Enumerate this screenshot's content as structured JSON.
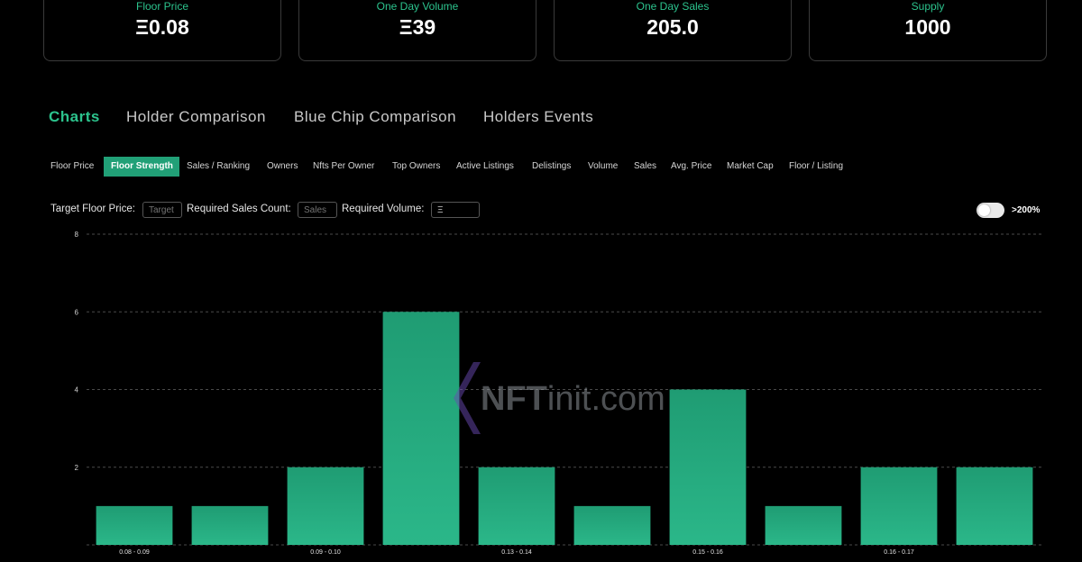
{
  "stats": [
    {
      "label": "Floor Price",
      "value": "Ξ0.08"
    },
    {
      "label": "One Day Volume",
      "value": "Ξ39"
    },
    {
      "label": "One Day Sales",
      "value": "205.0"
    },
    {
      "label": "Supply",
      "value": "1000"
    }
  ],
  "main_tabs": [
    "Charts",
    "Holder Comparison",
    "Blue Chip Comparison",
    "Holders Events"
  ],
  "sub_tabs": [
    "Floor Price",
    "Floor Strength",
    "Sales / Ranking",
    "Owners",
    "Nfts Per Owner",
    "Top Owners",
    "Active Listings",
    "Delistings",
    "Volume",
    "Sales",
    "Avg. Price",
    "Market Cap",
    "Floor / Listing"
  ],
  "filters": {
    "target_floor_label": "Target Floor Price:",
    "target_placeholder": "Target",
    "required_sales_label": "Required Sales Count:",
    "sales_placeholder": "Sales",
    "required_volume_label": "Required Volume:",
    "volume_value": "Ξ",
    "toggle_label": ">200%"
  },
  "watermark": {
    "part1": "NFT",
    "part2": "init.com"
  },
  "colors": {
    "accent": "#2cc38d",
    "bar": "#22a97c",
    "background": "#000000"
  },
  "chart_data": {
    "type": "bar",
    "categories": [
      "0.08 - 0.09",
      "",
      "0.09 - 0.10",
      "",
      "0.13 - 0.14",
      "",
      "0.15 - 0.16",
      "",
      "0.16 - 0.17",
      ""
    ],
    "values": [
      1,
      1,
      2,
      6,
      2,
      1,
      4,
      1,
      2,
      2
    ],
    "yticks": [
      2,
      4,
      6,
      8
    ],
    "ylim": [
      0,
      8
    ],
    "grid": true
  }
}
